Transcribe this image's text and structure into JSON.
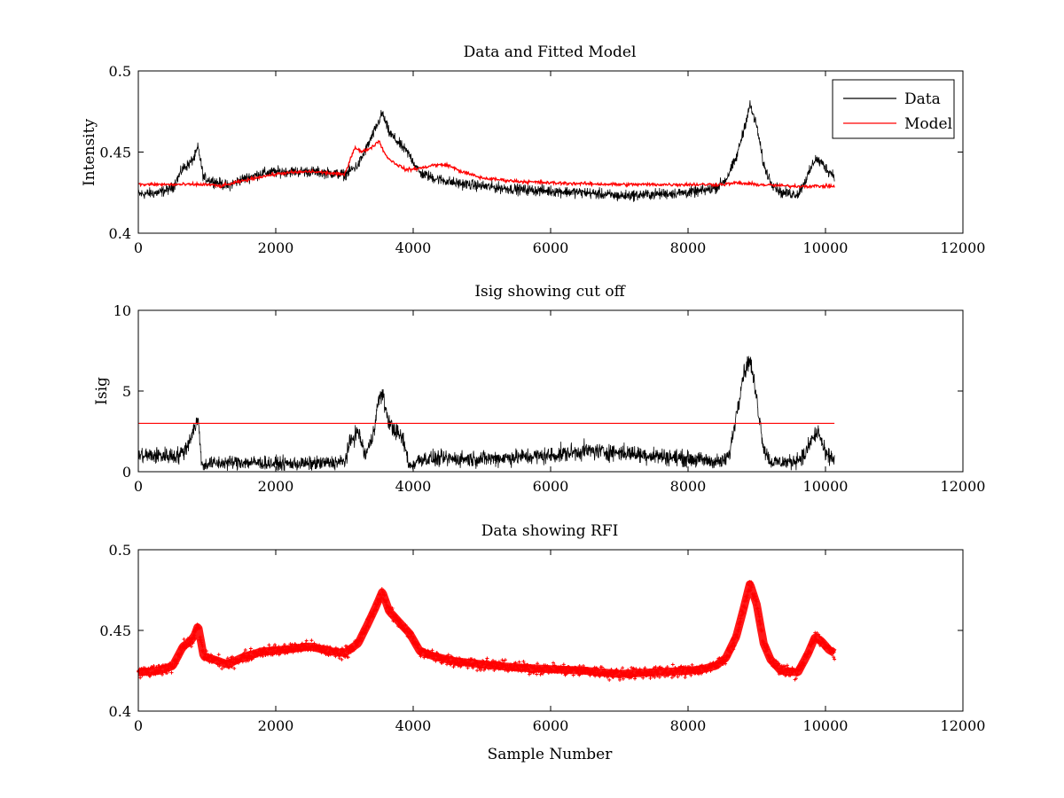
{
  "figure": {
    "background": "#ffffff"
  },
  "chart_data": [
    {
      "type": "line",
      "title": "Data and Fitted Model",
      "xlabel": "",
      "ylabel": "Intensity",
      "xlim": [
        0,
        12000
      ],
      "ylim": [
        0.4,
        0.5
      ],
      "xticks": [
        0,
        2000,
        4000,
        6000,
        8000,
        10000,
        12000
      ],
      "xtick_labels": [
        "0",
        "2000",
        "4000",
        "6000",
        "8000",
        "10000",
        "12000"
      ],
      "yticks": [
        0.4,
        0.45,
        0.5
      ],
      "ytick_labels": [
        "0.4",
        "0.45",
        "0.5"
      ],
      "grid": false,
      "legend": {
        "placement": "top-right",
        "entries": [
          "Data",
          "Model"
        ]
      },
      "series": [
        {
          "name": "Data",
          "color": "#000000",
          "style": "line-noisy",
          "noise_amplitude": 0.005,
          "x": [
            0,
            300,
            500,
            650,
            750,
            820,
            870,
            950,
            1100,
            1300,
            1500,
            1800,
            2100,
            2500,
            2800,
            3000,
            3200,
            3350,
            3450,
            3550,
            3650,
            3800,
            3950,
            4100,
            4300,
            4600,
            5000,
            5500,
            6000,
            6500,
            7000,
            7500,
            8000,
            8200,
            8400,
            8550,
            8700,
            8800,
            8900,
            9000,
            9100,
            9200,
            9350,
            9600,
            9750,
            9850,
            9950,
            10050,
            10130
          ],
          "y": [
            0.424,
            0.425,
            0.428,
            0.44,
            0.443,
            0.447,
            0.453,
            0.434,
            0.432,
            0.429,
            0.433,
            0.437,
            0.438,
            0.438,
            0.437,
            0.436,
            0.442,
            0.455,
            0.464,
            0.474,
            0.462,
            0.455,
            0.448,
            0.437,
            0.434,
            0.431,
            0.429,
            0.427,
            0.426,
            0.425,
            0.423,
            0.424,
            0.425,
            0.426,
            0.428,
            0.433,
            0.446,
            0.462,
            0.479,
            0.466,
            0.442,
            0.432,
            0.425,
            0.424,
            0.436,
            0.446,
            0.443,
            0.438,
            0.436
          ]
        },
        {
          "name": "Model",
          "color": "#ff0000",
          "style": "line",
          "noise_amplitude": 0.0015,
          "x": [
            0,
            1000,
            1200,
            1500,
            1800,
            2100,
            2500,
            2800,
            3000,
            3150,
            3250,
            3400,
            3500,
            3600,
            3700,
            3900,
            4100,
            4300,
            4500,
            4700,
            5000,
            5500,
            6000,
            7000,
            8000,
            8500,
            8700,
            9000,
            9500,
            10130
          ],
          "y": [
            0.43,
            0.43,
            0.429,
            0.432,
            0.435,
            0.437,
            0.438,
            0.437,
            0.436,
            0.453,
            0.45,
            0.453,
            0.457,
            0.448,
            0.444,
            0.439,
            0.44,
            0.442,
            0.442,
            0.438,
            0.434,
            0.432,
            0.431,
            0.43,
            0.43,
            0.43,
            0.431,
            0.43,
            0.429,
            0.429
          ]
        }
      ]
    },
    {
      "type": "line",
      "title": "Isig showing cut off",
      "xlabel": "",
      "ylabel": "Isig",
      "xlim": [
        0,
        12000
      ],
      "ylim": [
        0,
        10
      ],
      "xticks": [
        0,
        2000,
        4000,
        6000,
        8000,
        10000,
        12000
      ],
      "xtick_labels": [
        "0",
        "2000",
        "4000",
        "6000",
        "8000",
        "10000",
        "12000"
      ],
      "yticks": [
        0,
        5,
        10
      ],
      "ytick_labels": [
        "0",
        "5",
        "10"
      ],
      "grid": false,
      "series": [
        {
          "color": "#000000",
          "style": "line-noisy-positive",
          "noise_amplitude": 0.8,
          "x": [
            0,
            400,
            600,
            700,
            750,
            820,
            870,
            930,
            1000,
            1500,
            2000,
            2500,
            3000,
            3100,
            3200,
            3300,
            3400,
            3500,
            3550,
            3650,
            3750,
            3850,
            3950,
            4100,
            5000,
            6000,
            6500,
            7000,
            7500,
            8000,
            8500,
            8600,
            8700,
            8800,
            8900,
            9000,
            9100,
            9200,
            9500,
            9700,
            9800,
            9900,
            10000,
            10130
          ],
          "y": [
            1.0,
            1.0,
            1.0,
            1.5,
            2.0,
            2.8,
            3.2,
            0.3,
            0.5,
            0.6,
            0.5,
            0.5,
            0.6,
            2.0,
            2.5,
            1.0,
            2.0,
            4.5,
            4.8,
            3.0,
            2.5,
            2.0,
            0.3,
            0.8,
            0.8,
            1.0,
            1.3,
            1.2,
            1.0,
            0.8,
            0.6,
            1.0,
            3.5,
            6.0,
            7.0,
            4.5,
            1.5,
            0.6,
            0.6,
            1.0,
            2.0,
            2.5,
            1.0,
            0.8
          ]
        },
        {
          "name": "cut off",
          "color": "#ff0000",
          "style": "line",
          "x": [
            0,
            10130
          ],
          "y": [
            3,
            3
          ]
        }
      ]
    },
    {
      "type": "scatter",
      "title": "Data showing RFI",
      "xlabel": "Sample Number",
      "ylabel": "",
      "xlim": [
        0,
        12000
      ],
      "ylim": [
        0.4,
        0.5
      ],
      "xticks": [
        0,
        2000,
        4000,
        6000,
        8000,
        10000,
        12000
      ],
      "xtick_labels": [
        "0",
        "2000",
        "4000",
        "6000",
        "8000",
        "10000",
        "12000"
      ],
      "yticks": [
        0.4,
        0.45,
        0.5
      ],
      "ytick_labels": [
        "0.4",
        "0.45",
        "0.5"
      ],
      "grid": false,
      "series": [
        {
          "color": "#ff0000",
          "marker": "+",
          "style": "markers-noisy",
          "noise_amplitude": 0.005,
          "x": [
            0,
            300,
            500,
            650,
            750,
            820,
            870,
            950,
            1100,
            1300,
            1500,
            1800,
            2100,
            2500,
            2800,
            3000,
            3200,
            3350,
            3450,
            3550,
            3650,
            3800,
            3950,
            4100,
            4300,
            4600,
            5000,
            5500,
            6000,
            6500,
            7000,
            7500,
            8000,
            8200,
            8400,
            8550,
            8700,
            8800,
            8900,
            9000,
            9100,
            9200,
            9350,
            9600,
            9750,
            9850,
            9950,
            10050,
            10130
          ],
          "y": [
            0.424,
            0.425,
            0.428,
            0.44,
            0.443,
            0.447,
            0.453,
            0.434,
            0.432,
            0.429,
            0.433,
            0.437,
            0.438,
            0.44,
            0.437,
            0.436,
            0.442,
            0.455,
            0.464,
            0.474,
            0.462,
            0.455,
            0.448,
            0.437,
            0.434,
            0.431,
            0.429,
            0.427,
            0.426,
            0.425,
            0.423,
            0.424,
            0.425,
            0.426,
            0.428,
            0.433,
            0.446,
            0.462,
            0.479,
            0.466,
            0.442,
            0.432,
            0.425,
            0.424,
            0.436,
            0.446,
            0.443,
            0.438,
            0.436
          ]
        }
      ]
    }
  ]
}
